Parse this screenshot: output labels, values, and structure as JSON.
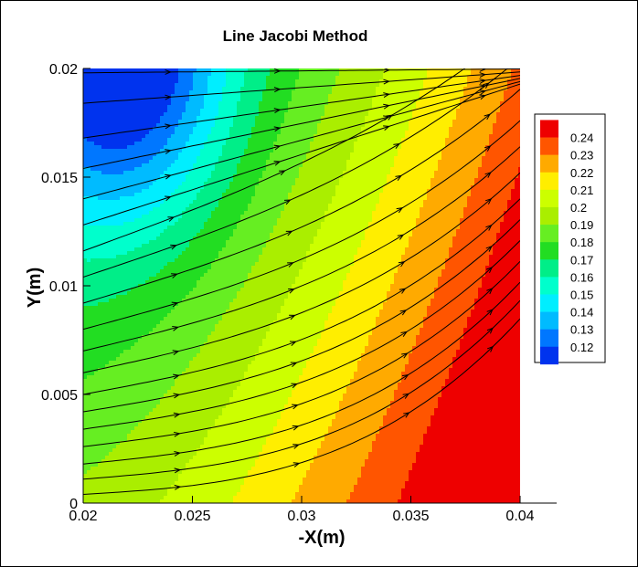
{
  "chart_data": {
    "type": "heatmap",
    "title": "Line Jacobi Method",
    "xlabel": "-X(m)",
    "ylabel": "Y(m)",
    "xlim": [
      0.02,
      0.04
    ],
    "ylim": [
      0,
      0.02
    ],
    "x_ticks": [
      "0.02",
      "0.025",
      "0.03",
      "0.035",
      "0.04"
    ],
    "y_ticks": [
      "0",
      "0.005",
      "0.01",
      "0.015",
      "0.02"
    ],
    "legend_position": "right",
    "levels": [
      "0.12",
      "0.13",
      "0.14",
      "0.15",
      "0.16",
      "0.17",
      "0.18",
      "0.19",
      "0.2",
      "0.21",
      "0.22",
      "0.23",
      "0.24"
    ],
    "level_colors": [
      "#0033ee",
      "#0077ff",
      "#00bbff",
      "#00eeff",
      "#00ffcc",
      "#00ee88",
      "#22dd22",
      "#66ee22",
      "#aaee00",
      "#ccff00",
      "#ffee00",
      "#ffaa00",
      "#ff5500",
      "#ee0000"
    ],
    "streamlines": true
  }
}
